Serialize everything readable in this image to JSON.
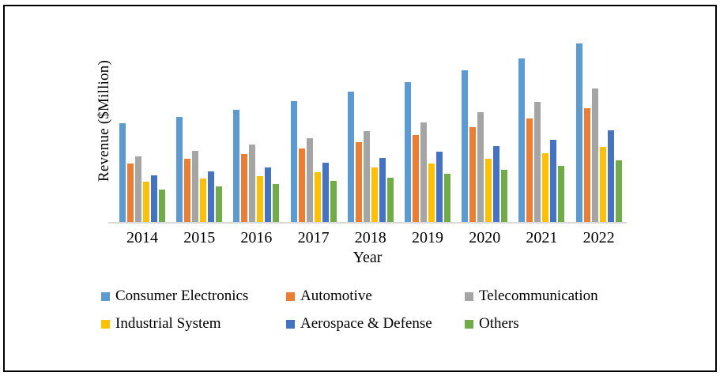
{
  "figure": {
    "background_color": "#ffffff",
    "border_color": "#000000",
    "axis_line_color": "#d9d9d9",
    "text_color": "#000000"
  },
  "chart_data": {
    "type": "bar",
    "title": "",
    "xlabel": "Year",
    "ylabel": "Revenue ($Million)",
    "categories": [
      "2014",
      "2015",
      "2016",
      "2017",
      "2018",
      "2019",
      "2020",
      "2021",
      "2022"
    ],
    "series": [
      {
        "name": "Consumer Electronics",
        "color": "#5B9BD5",
        "values": [
          125,
          133,
          142,
          153,
          165,
          177,
          192,
          207,
          226
        ]
      },
      {
        "name": "Automotive",
        "color": "#ED7D31",
        "values": [
          74,
          80,
          86,
          93,
          101,
          110,
          120,
          131,
          144
        ]
      },
      {
        "name": "Telecommunication",
        "color": "#A5A5A5",
        "values": [
          83,
          90,
          98,
          106,
          115,
          126,
          139,
          152,
          169
        ]
      },
      {
        "name": "Industrial System",
        "color": "#FFC000",
        "values": [
          51,
          55,
          58,
          63,
          69,
          74,
          80,
          87,
          95
        ]
      },
      {
        "name": "Aerospace & Defense",
        "color": "#4472C4",
        "values": [
          59,
          64,
          69,
          75,
          81,
          89,
          96,
          104,
          116
        ]
      },
      {
        "name": "Others",
        "color": "#70AD47",
        "values": [
          41,
          45,
          48,
          52,
          56,
          61,
          66,
          71,
          78
        ]
      }
    ],
    "ylim": [
      0,
      250
    ],
    "y_tick_labels_visible": false,
    "grid": false,
    "legend_position": "bottom",
    "legend_rows": 2,
    "legend_columns": 3
  }
}
